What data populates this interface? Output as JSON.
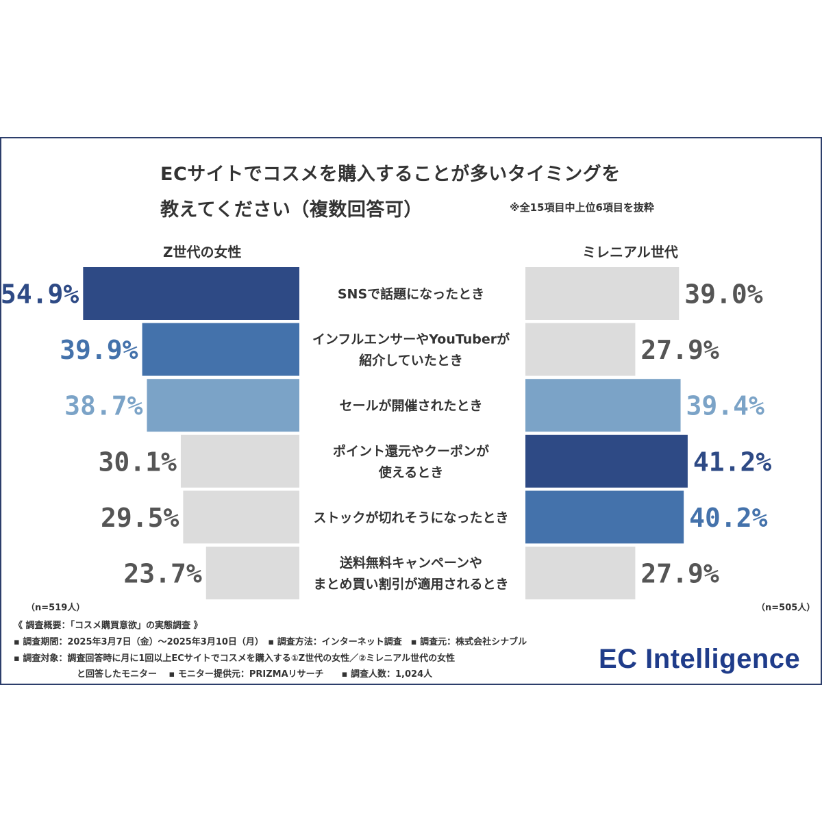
{
  "title_line1": "ECサイトでコスメを購入することが多いタイミングを",
  "title_line2": "教えてください（複数回答可）",
  "note": "※全15項目中上位6項目を抜粋",
  "left_group": "Z世代の女性",
  "right_group": "ミレニアル世代",
  "left_sample": "（n=519人）",
  "right_sample": "（n=505人）",
  "footnotes": {
    "line1": "《 調査概要：「コスメ購買意欲」の実態調査 》",
    "line2": "▪ 調査期間：2025年3月7日（金）〜2025年3月10日（月）　▪ 調査方法：インターネット調査　▪ 調査元：株式会社シナブル",
    "line3": "▪ 調査対象：調査回答時に月に1回以上ECサイトでコスメを購入する①Z世代の女性／②ミレニアル世代の女性",
    "line4": "と回答したモニター　 ▪ モニター提供元：PRIZMAリサーチ　　▪ 調査人数：1,024人"
  },
  "logo": "EC Intelligence",
  "colors": {
    "rank1": "#2e4a85",
    "rank2": "#4472ab",
    "rank3": "#7ba3c7",
    "other": "#dcdcdc",
    "other_text": "#555555",
    "frame": "#2c3e6b"
  },
  "chart_data": {
    "type": "bar",
    "orientation": "horizontal-butterfly",
    "unit": "%",
    "categories": [
      [
        "SNSで話題になったとき"
      ],
      [
        "インフルエンサーやYouTuberが",
        "紹介していたとき"
      ],
      [
        "セールが開催されたとき"
      ],
      [
        "ポイント還元やクーポンが",
        "使えるとき"
      ],
      [
        "ストックが切れそうになったとき"
      ],
      [
        "送料無料キャンペーンや",
        "まとめ買い割引が適用されるとき"
      ]
    ],
    "series": [
      {
        "name": "Z世代の女性",
        "values": [
          54.9,
          39.9,
          38.7,
          30.1,
          29.5,
          23.7
        ],
        "labels": [
          "54.9%",
          "39.9%",
          "38.7%",
          "30.1%",
          "29.5%",
          "23.7%"
        ],
        "highlight": [
          "rank1",
          "rank2",
          "rank3",
          "other",
          "other",
          "other"
        ]
      },
      {
        "name": "ミレニアル世代",
        "values": [
          39.0,
          27.9,
          39.4,
          41.2,
          40.2,
          27.9
        ],
        "labels": [
          "39.0%",
          "27.9%",
          "39.4%",
          "41.2%",
          "40.2%",
          "27.9%"
        ],
        "highlight": [
          "other",
          "other",
          "rank3",
          "rank1",
          "rank2",
          "other"
        ]
      }
    ]
  }
}
